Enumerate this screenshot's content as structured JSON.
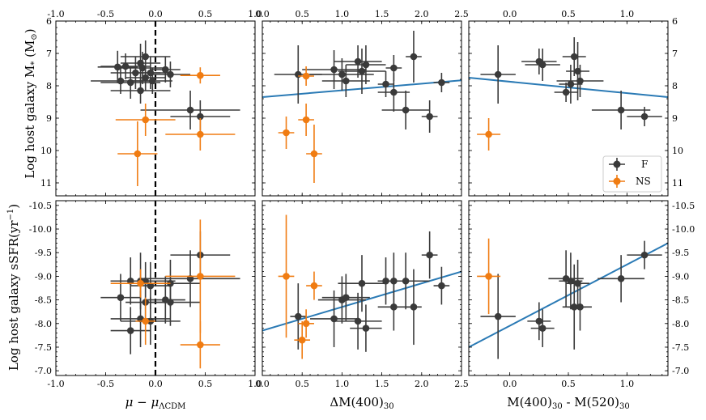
{
  "figure": {
    "ylabel_top": "Log host galaxy M",
    "ylabel_top_sub": "*",
    "ylabel_top_unit": " (M",
    "ylabel_top_unit_sub": "⊙",
    "ylabel_top_close": ")",
    "ylabel_bottom": "Log host galaxy sSFR(yr",
    "ylabel_bottom_sup": "−1",
    "ylabel_bottom_close": ")",
    "xlabel_col1": "μ − μ",
    "xlabel_col1_sub": "ΛCDM",
    "xlabel_col2": "ΔM(400)",
    "xlabel_col2_sub": "30",
    "xlabel_col3_a": "M(400)",
    "xlabel_col3_a_sub": "30",
    "xlabel_col3_mid": " - M(520)",
    "xlabel_col3_b_sub": "30",
    "legend": [
      {
        "label": "F",
        "color": "#3a3a3a"
      },
      {
        "label": "NS",
        "color": "#f07c12"
      }
    ],
    "colors": {
      "F": "#3a3a3a",
      "NS": "#f07c12",
      "fit": "#2a7ab5"
    }
  },
  "chart_data": [
    {
      "type": "scatter",
      "panel": "top-left",
      "xlim": [
        -1.0,
        1.0
      ],
      "ylim": [
        11.4,
        6.0
      ],
      "xticks": [
        "-1.0",
        "-0.5",
        "0.0",
        "0.5",
        "1.0"
      ],
      "yticks": [
        "6",
        "7",
        "8",
        "9",
        "10",
        "11"
      ],
      "vline": 0.0,
      "series": [
        {
          "name": "F",
          "points": [
            {
              "x": -0.38,
              "y": 7.42,
              "xe": 0.2,
              "ye": 0.5
            },
            {
              "x": -0.3,
              "y": 7.4,
              "xe": 0.25,
              "ye": 0.4
            },
            {
              "x": -0.25,
              "y": 7.9,
              "xe": 0.3,
              "ye": 0.5
            },
            {
              "x": -0.2,
              "y": 7.6,
              "xe": 0.25,
              "ye": 0.5
            },
            {
              "x": -0.15,
              "y": 7.3,
              "xe": 0.2,
              "ye": 0.6
            },
            {
              "x": -0.13,
              "y": 7.45,
              "xe": 0.22,
              "ye": 0.5
            },
            {
              "x": -0.1,
              "y": 7.1,
              "xe": 0.25,
              "ye": 0.5
            },
            {
              "x": -0.1,
              "y": 7.75,
              "xe": 0.2,
              "ye": 0.4
            },
            {
              "x": -0.05,
              "y": 7.6,
              "xe": 0.18,
              "ye": 0.5
            },
            {
              "x": -0.03,
              "y": 7.85,
              "xe": 0.2,
              "ye": 0.4
            },
            {
              "x": 0.1,
              "y": 7.5,
              "xe": 0.15,
              "ye": 0.4
            },
            {
              "x": 0.15,
              "y": 7.65,
              "xe": 0.2,
              "ye": 0.4
            },
            {
              "x": 0.35,
              "y": 8.75,
              "xe": 0.5,
              "ye": 0.6
            },
            {
              "x": 0.45,
              "y": 8.95,
              "xe": 0.3,
              "ye": 0.5
            },
            {
              "x": -0.35,
              "y": 7.85,
              "xe": 0.3,
              "ye": 0.4
            },
            {
              "x": -0.15,
              "y": 8.15,
              "xe": 0.3,
              "ye": 0.4
            }
          ]
        },
        {
          "name": "NS",
          "points": [
            {
              "x": 0.45,
              "y": 7.68,
              "xe": 0.2,
              "ye": 0.25
            },
            {
              "x": -0.1,
              "y": 9.05,
              "xe": 0.3,
              "ye": 0.5
            },
            {
              "x": 0.45,
              "y": 9.5,
              "xe": 0.35,
              "ye": 0.5
            },
            {
              "x": -0.18,
              "y": 10.1,
              "xe": 0.2,
              "ye": 1.0
            }
          ]
        }
      ]
    },
    {
      "type": "scatter",
      "panel": "top-middle",
      "xlim": [
        0.0,
        2.5
      ],
      "ylim": [
        11.4,
        6.0
      ],
      "xticks": [
        "0.0",
        "0.5",
        "1.0",
        "1.5",
        "2.0",
        "2.5"
      ],
      "fit": {
        "x": [
          0.0,
          2.5
        ],
        "y": [
          8.35,
          7.83
        ]
      },
      "series": [
        {
          "name": "F",
          "points": [
            {
              "x": 0.45,
              "y": 7.65,
              "xe": 0.3,
              "ye": 0.9
            },
            {
              "x": 0.9,
              "y": 7.5,
              "xe": 0.4,
              "ye": 0.6
            },
            {
              "x": 1.0,
              "y": 7.65,
              "xe": 0.4,
              "ye": 0.5
            },
            {
              "x": 1.05,
              "y": 7.85,
              "xe": 0.3,
              "ye": 0.5
            },
            {
              "x": 1.2,
              "y": 7.25,
              "xe": 0.3,
              "ye": 0.5
            },
            {
              "x": 1.25,
              "y": 7.55,
              "xe": 0.3,
              "ye": 0.7
            },
            {
              "x": 1.3,
              "y": 7.35,
              "xe": 0.25,
              "ye": 0.6
            },
            {
              "x": 1.55,
              "y": 7.95,
              "xe": 0.1,
              "ye": 0.4
            },
            {
              "x": 1.65,
              "y": 7.45,
              "xe": 0.1,
              "ye": 0.4
            },
            {
              "x": 1.65,
              "y": 8.2,
              "xe": 0.2,
              "ye": 0.6
            },
            {
              "x": 1.8,
              "y": 8.75,
              "xe": 0.3,
              "ye": 0.6
            },
            {
              "x": 1.9,
              "y": 7.1,
              "xe": 0.1,
              "ye": 0.8
            },
            {
              "x": 2.1,
              "y": 8.95,
              "xe": 0.1,
              "ye": 0.5
            },
            {
              "x": 2.25,
              "y": 7.9,
              "xe": 0.1,
              "ye": 0.3
            }
          ]
        },
        {
          "name": "NS",
          "points": [
            {
              "x": 0.55,
              "y": 7.7,
              "xe": 0.1,
              "ye": 0.3
            },
            {
              "x": 0.3,
              "y": 9.45,
              "xe": 0.1,
              "ye": 0.5
            },
            {
              "x": 0.55,
              "y": 9.05,
              "xe": 0.1,
              "ye": 0.5
            },
            {
              "x": 0.65,
              "y": 10.1,
              "xe": 0.1,
              "ye": 0.9
            }
          ]
        }
      ]
    },
    {
      "type": "scatter",
      "panel": "top-right",
      "xlim": [
        -0.35,
        1.35
      ],
      "ylim": [
        11.4,
        6.0
      ],
      "xticks": [
        "0.0",
        "0.5",
        "1.0"
      ],
      "yticks_right": [
        "6",
        "7",
        "8",
        "9",
        "10",
        "11"
      ],
      "fit": {
        "x": [
          -0.35,
          1.35
        ],
        "y": [
          7.75,
          8.35
        ]
      },
      "series": [
        {
          "name": "F",
          "points": [
            {
              "x": -0.1,
              "y": 7.65,
              "xe": 0.15,
              "ye": 0.9
            },
            {
              "x": 0.25,
              "y": 7.25,
              "xe": 0.15,
              "ye": 0.4
            },
            {
              "x": 0.28,
              "y": 7.35,
              "xe": 0.15,
              "ye": 0.5
            },
            {
              "x": 0.48,
              "y": 8.2,
              "xe": 0.1,
              "ye": 0.3
            },
            {
              "x": 0.52,
              "y": 7.95,
              "xe": 0.1,
              "ye": 0.6
            },
            {
              "x": 0.55,
              "y": 7.1,
              "xe": 0.1,
              "ye": 0.6
            },
            {
              "x": 0.58,
              "y": 7.55,
              "xe": 0.1,
              "ye": 0.9
            },
            {
              "x": 0.6,
              "y": 7.85,
              "xe": 0.2,
              "ye": 0.5
            },
            {
              "x": 0.95,
              "y": 8.75,
              "xe": 0.25,
              "ye": 0.6
            },
            {
              "x": 1.15,
              "y": 8.95,
              "xe": 0.15,
              "ye": 0.3
            }
          ]
        },
        {
          "name": "NS",
          "points": [
            {
              "x": -0.18,
              "y": 9.5,
              "xe": 0.1,
              "ye": 0.5
            }
          ]
        }
      ]
    },
    {
      "type": "scatter",
      "panel": "bottom-left",
      "xlim": [
        -1.0,
        1.0
      ],
      "ylim": [
        -6.9,
        -10.6
      ],
      "xticks": [
        "-1.0",
        "-0.5",
        "0.0",
        "0.5",
        "1.0"
      ],
      "yticks": [
        "-10.5",
        "-10.0",
        "-9.5",
        "-9.0",
        "-8.5",
        "-8.0",
        "-7.5",
        "-7.0"
      ],
      "vline": 0.0,
      "series": [
        {
          "name": "F",
          "points": [
            {
              "x": -0.35,
              "y": -8.55,
              "xe": 0.2,
              "ye": 0.5
            },
            {
              "x": -0.25,
              "y": -8.9,
              "xe": 0.2,
              "ye": 0.5
            },
            {
              "x": -0.25,
              "y": -7.85,
              "xe": 0.2,
              "ye": 0.5
            },
            {
              "x": -0.15,
              "y": -8.1,
              "xe": 0.3,
              "ye": 0.6
            },
            {
              "x": -0.15,
              "y": -8.9,
              "xe": 0.3,
              "ye": 0.6
            },
            {
              "x": -0.1,
              "y": -8.45,
              "xe": 0.2,
              "ye": 0.4
            },
            {
              "x": -0.05,
              "y": -8.8,
              "xe": 0.2,
              "ye": 0.5
            },
            {
              "x": -0.05,
              "y": -8.05,
              "xe": 0.3,
              "ye": 0.5
            },
            {
              "x": 0.1,
              "y": -8.5,
              "xe": 0.2,
              "ye": 0.5
            },
            {
              "x": 0.15,
              "y": -8.45,
              "xe": 0.3,
              "ye": 0.5
            },
            {
              "x": 0.15,
              "y": -8.85,
              "xe": 0.3,
              "ye": 0.5
            },
            {
              "x": 0.35,
              "y": -8.95,
              "xe": 0.5,
              "ye": 0.6
            },
            {
              "x": 0.45,
              "y": -9.45,
              "xe": 0.3,
              "ye": 0.5
            },
            {
              "x": -0.1,
              "y": -8.9,
              "xe": 0.3,
              "ye": 0.4
            }
          ]
        },
        {
          "name": "NS",
          "points": [
            {
              "x": -0.15,
              "y": -8.85,
              "xe": 0.3,
              "ye": 0.3
            },
            {
              "x": -0.1,
              "y": -8.05,
              "xe": 0.1,
              "ye": 0.5
            },
            {
              "x": 0.45,
              "y": -9.0,
              "xe": 0.35,
              "ye": 1.2
            },
            {
              "x": 0.45,
              "y": -7.55,
              "xe": 0.2,
              "ye": 0.5
            }
          ]
        }
      ]
    },
    {
      "type": "scatter",
      "panel": "bottom-middle",
      "xlim": [
        0.0,
        2.5
      ],
      "ylim": [
        -6.9,
        -10.6
      ],
      "xticks": [
        "0.0",
        "0.5",
        "1.0",
        "1.5",
        "2.0",
        "2.5"
      ],
      "fit": {
        "x": [
          0.0,
          2.5
        ],
        "y": [
          -7.85,
          -9.1
        ]
      },
      "series": [
        {
          "name": "F",
          "points": [
            {
              "x": 0.45,
              "y": -8.15,
              "xe": 0.1,
              "ye": 0.7
            },
            {
              "x": 0.9,
              "y": -8.1,
              "xe": 0.3,
              "ye": 0.6
            },
            {
              "x": 1.0,
              "y": -8.5,
              "xe": 0.3,
              "ye": 0.5
            },
            {
              "x": 1.05,
              "y": -8.55,
              "xe": 0.3,
              "ye": 0.5
            },
            {
              "x": 1.2,
              "y": -8.05,
              "xe": 0.3,
              "ye": 0.6
            },
            {
              "x": 1.25,
              "y": -8.85,
              "xe": 0.3,
              "ye": 0.6
            },
            {
              "x": 1.3,
              "y": -7.9,
              "xe": 0.2,
              "ye": 0.5
            },
            {
              "x": 1.55,
              "y": -8.9,
              "xe": 0.1,
              "ye": 0.5
            },
            {
              "x": 1.65,
              "y": -8.35,
              "xe": 0.2,
              "ye": 0.5
            },
            {
              "x": 1.65,
              "y": -8.9,
              "xe": 0.2,
              "ye": 0.6
            },
            {
              "x": 1.8,
              "y": -8.9,
              "xe": 0.3,
              "ye": 0.6
            },
            {
              "x": 1.9,
              "y": -8.35,
              "xe": 0.1,
              "ye": 0.8
            },
            {
              "x": 2.1,
              "y": -9.45,
              "xe": 0.1,
              "ye": 0.5
            },
            {
              "x": 2.25,
              "y": -8.8,
              "xe": 0.1,
              "ye": 0.4
            }
          ]
        },
        {
          "name": "NS",
          "points": [
            {
              "x": 0.3,
              "y": -9.0,
              "xe": 0.1,
              "ye": 1.3
            },
            {
              "x": 0.5,
              "y": -7.65,
              "xe": 0.1,
              "ye": 0.4
            },
            {
              "x": 0.55,
              "y": -8.0,
              "xe": 0.1,
              "ye": 0.3
            },
            {
              "x": 0.65,
              "y": -8.8,
              "xe": 0.1,
              "ye": 0.3
            }
          ]
        }
      ]
    },
    {
      "type": "scatter",
      "panel": "bottom-right",
      "xlim": [
        -0.35,
        1.35
      ],
      "ylim": [
        -6.9,
        -10.6
      ],
      "xticks": [
        "0.0",
        "0.5",
        "1.0"
      ],
      "yticks_right": [
        "-10.5",
        "-10.0",
        "-9.5",
        "-9.0",
        "-8.5",
        "-8.0",
        "-7.5",
        "-7.0"
      ],
      "fit": {
        "x": [
          -0.35,
          1.35
        ],
        "y": [
          -7.5,
          -9.7
        ]
      },
      "series": [
        {
          "name": "F",
          "points": [
            {
              "x": -0.1,
              "y": -8.15,
              "xe": 0.15,
              "ye": 0.9
            },
            {
              "x": 0.25,
              "y": -8.05,
              "xe": 0.1,
              "ye": 0.4
            },
            {
              "x": 0.28,
              "y": -7.9,
              "xe": 0.1,
              "ye": 0.4
            },
            {
              "x": 0.48,
              "y": -8.95,
              "xe": 0.15,
              "ye": 0.6
            },
            {
              "x": 0.52,
              "y": -8.9,
              "xe": 0.1,
              "ye": 0.6
            },
            {
              "x": 0.55,
              "y": -8.35,
              "xe": 0.1,
              "ye": 0.9
            },
            {
              "x": 0.58,
              "y": -8.85,
              "xe": 0.1,
              "ye": 0.5
            },
            {
              "x": 0.6,
              "y": -8.35,
              "xe": 0.1,
              "ye": 0.5
            },
            {
              "x": 0.95,
              "y": -8.95,
              "xe": 0.2,
              "ye": 0.5
            },
            {
              "x": 1.15,
              "y": -9.45,
              "xe": 0.15,
              "ye": 0.3
            }
          ]
        },
        {
          "name": "NS",
          "points": [
            {
              "x": -0.18,
              "y": -9.0,
              "xe": 0.1,
              "ye": 0.8
            }
          ]
        }
      ]
    }
  ]
}
